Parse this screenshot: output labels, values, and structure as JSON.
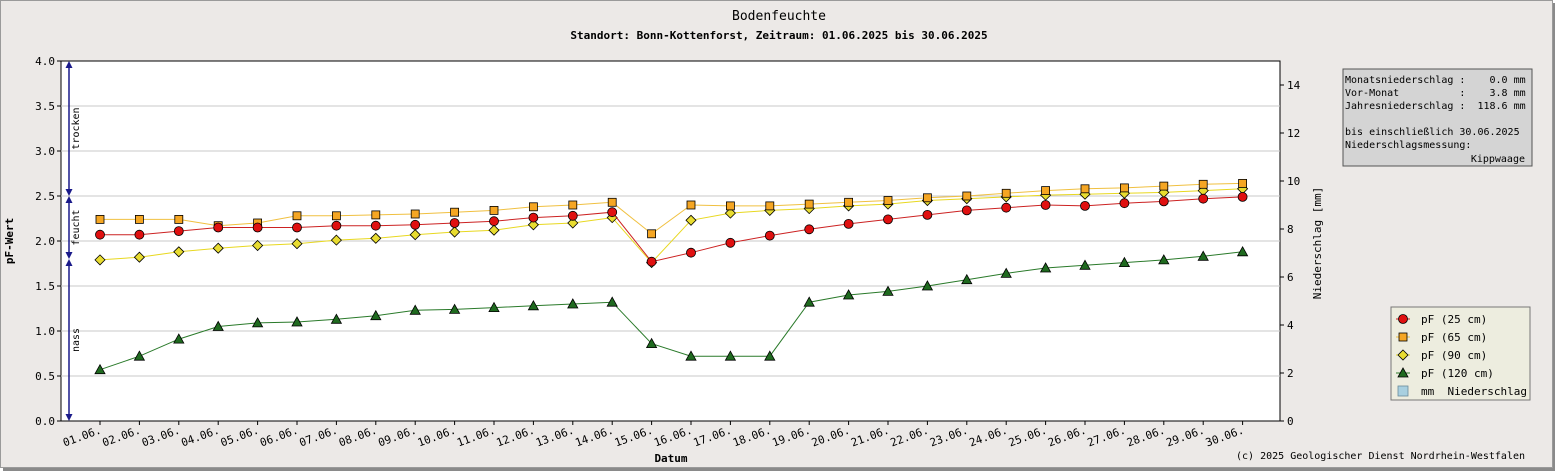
{
  "chart_data": {
    "type": "line",
    "title": "Bodenfeuchte",
    "subtitle": "Standort: Bonn-Kottenforst, Zeitraum: 01.06.2025 bis 30.06.2025",
    "xlabel": "Datum",
    "ylabel": "pF-Wert",
    "y2label": "Niederschlag [mm]",
    "categories": [
      "01.06.",
      "02.06.",
      "03.06.",
      "04.06.",
      "05.06.",
      "06.06.",
      "07.06.",
      "08.06.",
      "09.06.",
      "10.06.",
      "11.06.",
      "12.06.",
      "13.06.",
      "14.06.",
      "15.06.",
      "16.06.",
      "17.06.",
      "18.06.",
      "19.06.",
      "20.06.",
      "21.06.",
      "22.06.",
      "23.06.",
      "24.06.",
      "25.06.",
      "26.06.",
      "27.06.",
      "28.06.",
      "29.06.",
      "30.06."
    ],
    "ylim": [
      0,
      4
    ],
    "yticks": [
      "0.0",
      "0.5",
      "1.0",
      "1.5",
      "2.0",
      "2.5",
      "3.0",
      "3.5",
      "4.0"
    ],
    "y2lim": [
      0,
      15
    ],
    "y2ticks": [
      "0",
      "2",
      "4",
      "6",
      "8",
      "10",
      "12",
      "14"
    ],
    "grid": true,
    "series": [
      {
        "name": "pF (25 cm)",
        "color": "#cc2222",
        "fill": "#e01010",
        "marker": "circle",
        "values": [
          2.07,
          2.07,
          2.11,
          2.15,
          2.15,
          2.15,
          2.17,
          2.17,
          2.18,
          2.2,
          2.22,
          2.26,
          2.28,
          2.32,
          1.77,
          1.87,
          1.98,
          2.06,
          2.13,
          2.19,
          2.24,
          2.29,
          2.34,
          2.37,
          2.4,
          2.39,
          2.42,
          2.44,
          2.47,
          2.49
        ]
      },
      {
        "name": "pF (65 cm)",
        "color": "#f0c040",
        "fill": "#f5a623",
        "marker": "square",
        "values": [
          2.24,
          2.24,
          2.24,
          2.17,
          2.2,
          2.28,
          2.28,
          2.29,
          2.3,
          2.32,
          2.34,
          2.38,
          2.4,
          2.43,
          2.08,
          2.4,
          2.39,
          2.39,
          2.41,
          2.43,
          2.45,
          2.48,
          2.5,
          2.53,
          2.56,
          2.58,
          2.59,
          2.61,
          2.63,
          2.64
        ]
      },
      {
        "name": "pF (90 cm)",
        "color": "#e8d820",
        "fill": "#e8dc30",
        "marker": "diamond",
        "values": [
          1.79,
          1.82,
          1.88,
          1.92,
          1.95,
          1.97,
          2.01,
          2.03,
          2.07,
          2.1,
          2.12,
          2.18,
          2.2,
          2.26,
          1.76,
          2.23,
          2.31,
          2.34,
          2.36,
          2.39,
          2.41,
          2.45,
          2.47,
          2.49,
          2.51,
          2.52,
          2.53,
          2.54,
          2.56,
          2.58
        ]
      },
      {
        "name": "pF (120 cm)",
        "color": "#2a7a2a",
        "fill": "#1f6a1f",
        "marker": "triangle",
        "values": [
          0.57,
          0.72,
          0.91,
          1.05,
          1.09,
          1.1,
          1.13,
          1.17,
          1.23,
          1.24,
          1.26,
          1.28,
          1.3,
          1.32,
          0.86,
          0.72,
          0.72,
          0.72,
          1.32,
          1.4,
          1.44,
          1.5,
          1.57,
          1.64,
          1.7,
          1.73,
          1.76,
          1.79,
          1.83,
          1.88
        ]
      }
    ],
    "precipitation": {
      "name": "mm  Niederschlag",
      "color": "#a8d0e0",
      "values": []
    },
    "legend_position": "right",
    "zones": [
      {
        "label": "trocken",
        "from": 2.5,
        "to": 4.0
      },
      {
        "label": "feucht",
        "from": 1.8,
        "to": 2.5
      },
      {
        "label": "nass",
        "from": 0.0,
        "to": 1.8
      }
    ]
  },
  "info_box": {
    "lines": [
      "Monatsniederschlag :    0.0 mm",
      "Vor-Monat          :    3.8 mm",
      "Jahresniederschlag :  118.6 mm",
      "",
      "bis einschließlich 30.06.2025",
      "Niederschlagsmessung:"
    ],
    "method": "Kippwaage"
  },
  "copyright": "(c) 2025 Geologischer Dienst Nordrhein-Westfalen"
}
